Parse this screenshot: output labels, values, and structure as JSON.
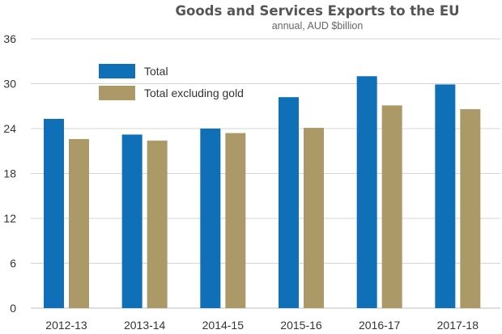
{
  "chart_data": {
    "type": "bar",
    "title": "Goods and Services Exports to the EU",
    "subtitle": "annual, AUD $billion",
    "xlabel": "",
    "ylabel": "",
    "categories": [
      "2012-13",
      "2013-14",
      "2014-15",
      "2015-16",
      "2016-17",
      "2017-18"
    ],
    "series": [
      {
        "name": "Total",
        "color": "#0f70b7",
        "values": [
          25.3,
          23.2,
          24.0,
          28.2,
          31.0,
          29.9
        ]
      },
      {
        "name": "Total excluding gold",
        "color": "#ab9a68",
        "values": [
          22.6,
          22.4,
          23.4,
          24.1,
          27.1,
          26.6
        ]
      }
    ],
    "ylim": [
      0,
      36
    ],
    "yticks": [
      0,
      6,
      12,
      18,
      24,
      30,
      36
    ],
    "grid": true,
    "legend_position": "top-left"
  }
}
